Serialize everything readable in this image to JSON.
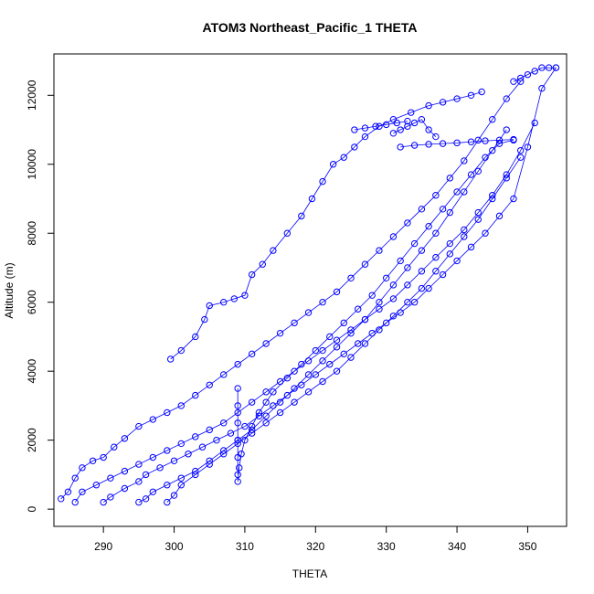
{
  "chart_data": {
    "type": "scatter",
    "title": "ATOM3 Northeast_Pacific_1 THETA",
    "xlabel": "THETA",
    "ylabel": "Altitude (m)",
    "xlim": [
      283,
      355.5
    ],
    "ylim": [
      -500,
      13200
    ],
    "xticks": [
      290,
      300,
      310,
      320,
      330,
      340,
      350
    ],
    "yticks": [
      0,
      2000,
      4000,
      6000,
      8000,
      10000,
      12000
    ],
    "marker": "open-circle",
    "color": "#0000ff",
    "series": [
      {
        "x": [
          299.5,
          301,
          303,
          304.3,
          305,
          307,
          308.5,
          310,
          311,
          312.5,
          314,
          316,
          318,
          319.5,
          321,
          322.5,
          324,
          325.5,
          327,
          329,
          331,
          333.5,
          336,
          338,
          340,
          342,
          343.5
        ],
        "y": [
          4350,
          4600,
          5000,
          5500,
          5900,
          6000,
          6100,
          6200,
          6800,
          7100,
          7500,
          8000,
          8500,
          9000,
          9500,
          10000,
          10200,
          10500,
          10800,
          11100,
          11300,
          11500,
          11700,
          11800,
          11900,
          12000,
          12100
        ]
      },
      {
        "x": [
          284,
          285,
          286,
          287,
          288.5,
          290,
          291.5,
          293,
          295,
          297,
          299,
          301,
          303,
          305,
          307,
          309,
          311,
          313,
          315,
          317,
          319,
          321,
          323,
          325,
          327,
          329,
          331,
          333,
          335,
          337,
          339,
          341,
          343,
          345,
          347,
          349
        ],
        "y": [
          300,
          500,
          900,
          1200,
          1400,
          1500,
          1800,
          2050,
          2400,
          2600,
          2800,
          3000,
          3300,
          3600,
          3900,
          4200,
          4500,
          4800,
          5100,
          5400,
          5700,
          6000,
          6300,
          6700,
          7100,
          7500,
          7900,
          8300,
          8700,
          9100,
          9600,
          10100,
          10700,
          11300,
          11900,
          12400
        ]
      },
      {
        "x": [
          286,
          287,
          289,
          291,
          293,
          295,
          297,
          299,
          301,
          303,
          305,
          307,
          309,
          311,
          313,
          315,
          317,
          319,
          321,
          323,
          325,
          327,
          329,
          331,
          333,
          335,
          337,
          339,
          341,
          343,
          345,
          347,
          349,
          351
        ],
        "y": [
          200,
          500,
          700,
          900,
          1100,
          1300,
          1500,
          1700,
          1900,
          2100,
          2300,
          2500,
          2800,
          3100,
          3400,
          3700,
          4000,
          4300,
          4600,
          4900,
          5200,
          5500,
          5800,
          6100,
          6500,
          6900,
          7300,
          7700,
          8100,
          8600,
          9100,
          9700,
          10400,
          11200
        ]
      },
      {
        "x": [
          290,
          291,
          293,
          295,
          296,
          298,
          300,
          302,
          304,
          306,
          308,
          310,
          312,
          314,
          316,
          318,
          320,
          322,
          324,
          326,
          328,
          330,
          332,
          334,
          336,
          338,
          340,
          342,
          344,
          346,
          348,
          350,
          352,
          354
        ],
        "y": [
          200,
          350,
          600,
          800,
          1000,
          1200,
          1400,
          1600,
          1800,
          2000,
          2200,
          2400,
          2700,
          3000,
          3300,
          3600,
          3900,
          4200,
          4500,
          4800,
          5100,
          5400,
          5700,
          6000,
          6400,
          6800,
          7200,
          7600,
          8000,
          8500,
          9000,
          10500,
          12200,
          12800
        ]
      },
      {
        "x": [
          295,
          296,
          297,
          299,
          301,
          303,
          305,
          307,
          309,
          311,
          313,
          315,
          317,
          319,
          321,
          323,
          325,
          327,
          329,
          331,
          333,
          335,
          337,
          339,
          341,
          343,
          345,
          347
        ],
        "y": [
          200,
          300,
          500,
          700,
          900,
          1100,
          1400,
          1700,
          2000,
          2300,
          2700,
          3100,
          3500,
          3900,
          4300,
          4700,
          5100,
          5500,
          6000,
          6500,
          7000,
          7500,
          8000,
          8600,
          9200,
          9800,
          10400,
          11000
        ]
      },
      {
        "x": [
          299,
          300,
          301,
          303,
          305,
          307,
          309,
          311,
          313,
          315,
          317,
          319,
          321,
          323,
          325,
          327,
          329,
          331,
          333,
          335,
          337,
          339,
          341,
          343,
          345,
          347,
          349
        ],
        "y": [
          200,
          400,
          700,
          1000,
          1300,
          1600,
          1900,
          2200,
          2500,
          2800,
          3100,
          3400,
          3700,
          4000,
          4400,
          4800,
          5200,
          5600,
          6000,
          6400,
          6900,
          7400,
          7900,
          8400,
          9000,
          9600,
          10200
        ]
      },
      {
        "x": [
          309,
          309.2,
          309.5,
          310,
          311,
          312,
          313,
          314,
          316,
          318,
          320,
          322,
          324,
          326,
          328,
          330,
          332,
          334,
          336,
          338,
          340,
          342,
          344,
          346,
          348
        ],
        "y": [
          800,
          1200,
          1600,
          2000,
          2400,
          2800,
          3100,
          3400,
          3800,
          4200,
          4600,
          5000,
          5400,
          5800,
          6200,
          6700,
          7200,
          7700,
          8200,
          8700,
          9200,
          9700,
          10200,
          10600,
          10700
        ]
      },
      {
        "x": [
          309,
          309,
          309,
          309,
          309,
          309
        ],
        "y": [
          1000,
          1500,
          2000,
          2500,
          3000,
          3500
        ]
      },
      {
        "x": [
          325.5,
          327,
          328.5,
          330,
          331.5,
          333
        ],
        "y": [
          11000,
          11050,
          11100,
          11150,
          11200,
          11250
        ]
      },
      {
        "x": [
          332,
          334,
          336,
          338,
          340,
          342,
          344,
          346,
          348
        ],
        "y": [
          10500,
          10550,
          10580,
          10600,
          10620,
          10650,
          10680,
          10700,
          10720
        ]
      },
      {
        "x": [
          348,
          349,
          350,
          351,
          352,
          353,
          354
        ],
        "y": [
          12400,
          12500,
          12600,
          12700,
          12800,
          12800,
          12800
        ]
      },
      {
        "x": [
          331,
          332,
          333,
          334,
          335,
          336,
          337
        ],
        "y": [
          10900,
          11000,
          11100,
          11200,
          11300,
          11000,
          10800
        ]
      }
    ]
  }
}
